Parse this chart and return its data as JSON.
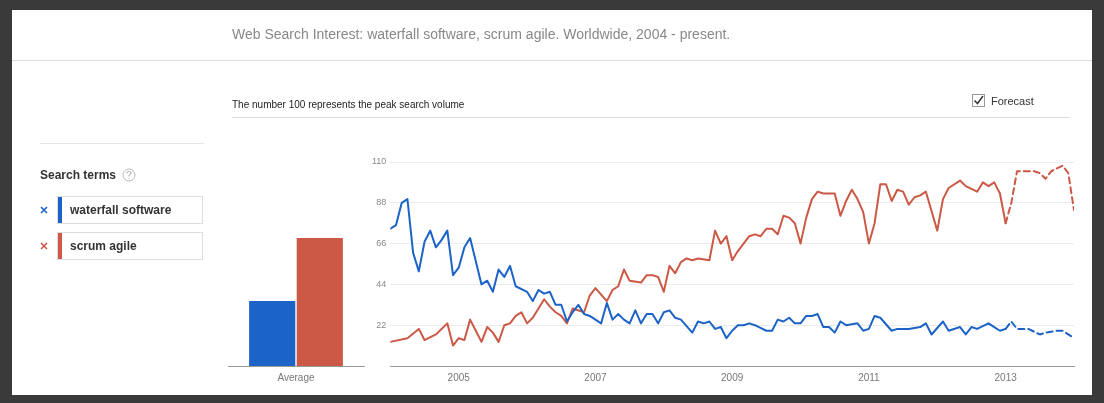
{
  "chart_data": [
    {
      "type": "bar",
      "categories": [
        "Average"
      ],
      "series": [
        {
          "color": "#1c63c7",
          "values": [
            35
          ]
        },
        {
          "color": "#cc5846",
          "values": [
            69
          ]
        }
      ],
      "ylim": [
        0,
        110
      ],
      "tick_labels": "x"
    },
    {
      "type": "line",
      "title": "Web Search Interest: waterfall software, scrum agile. Worldwide, 2004 - present.",
      "subtitle": "The number 100 represents the peak search volume",
      "legend_title": "Search terms",
      "annotations": [
        "Forecast"
      ],
      "series": [
        {
          "name": "waterfall software",
          "color": "#1c63c7",
          "x": [
            "2004-01",
            "2004-02",
            "2004-03",
            "2004-04",
            "2004-05",
            "2004-06",
            "2004-07",
            "2004-08",
            "2004-09",
            "2004-10",
            "2004-11",
            "2004-12",
            "2005-01",
            "2005-02",
            "2005-03",
            "2005-05",
            "2005-06",
            "2005-07",
            "2005-08",
            "2005-09",
            "2005-10",
            "2005-11",
            "2006-01",
            "2006-02",
            "2006-03",
            "2006-04",
            "2006-05",
            "2006-06",
            "2006-07",
            "2006-08",
            "2006-09",
            "2006-10",
            "2006-11",
            "2006-12",
            "2007-02",
            "2007-03",
            "2007-04",
            "2007-05",
            "2007-06",
            "2007-07",
            "2007-08",
            "2007-09",
            "2007-10",
            "2007-11",
            "2007-12",
            "2008-01",
            "2008-02",
            "2008-03",
            "2008-04",
            "2008-06",
            "2008-07",
            "2008-08",
            "2008-09",
            "2008-10",
            "2008-11",
            "2008-12",
            "2009-01",
            "2009-02",
            "2009-03",
            "2009-04",
            "2009-05",
            "2009-07",
            "2009-08",
            "2009-09",
            "2009-10",
            "2009-11",
            "2009-12",
            "2010-01",
            "2010-02",
            "2010-03",
            "2010-04",
            "2010-05",
            "2010-06",
            "2010-07",
            "2010-08",
            "2010-09",
            "2010-11",
            "2010-12",
            "2011-01",
            "2011-02",
            "2011-03",
            "2011-05",
            "2011-06",
            "2011-08",
            "2011-10",
            "2011-11",
            "2011-12",
            "2012-02",
            "2012-03",
            "2012-05",
            "2012-06",
            "2012-07",
            "2012-08",
            "2012-10",
            "2012-11",
            "2012-12",
            "2013-01"
          ],
          "values": [
            74,
            76,
            88,
            90,
            61,
            51,
            67,
            73,
            64,
            68,
            73,
            49,
            53,
            64,
            69,
            44,
            46,
            40,
            52,
            48,
            54,
            43,
            40,
            35,
            41,
            39,
            40,
            33,
            33,
            24,
            29,
            33,
            28,
            27,
            23,
            34,
            25,
            28,
            25,
            23,
            30,
            23,
            28,
            28,
            23,
            29,
            30,
            26,
            25,
            18,
            24,
            23,
            24,
            20,
            21,
            15,
            19,
            22,
            22,
            23,
            22,
            19,
            19,
            25,
            24,
            26,
            23,
            23,
            27,
            27,
            28,
            21,
            21,
            18,
            24,
            22,
            23,
            19,
            20,
            27,
            26,
            19,
            20,
            20,
            21,
            23,
            17,
            24,
            19,
            21,
            17,
            21,
            20,
            23,
            21,
            19,
            20
          ]
        },
        {
          "name": "scrum agile",
          "color": "#cc5846",
          "x": [
            "2004-01",
            "2004-04",
            "2004-06",
            "2004-07",
            "2004-09",
            "2004-11",
            "2004-12",
            "2005-01",
            "2005-02",
            "2005-03",
            "2005-04",
            "2005-05",
            "2005-06",
            "2005-07",
            "2005-08",
            "2005-09",
            "2005-10",
            "2005-11",
            "2005-12",
            "2006-01",
            "2006-02",
            "2006-04",
            "2006-05",
            "2006-06",
            "2006-07",
            "2006-08",
            "2006-09",
            "2006-11",
            "2006-12",
            "2007-01",
            "2007-03",
            "2007-04",
            "2007-05",
            "2007-06",
            "2007-07",
            "2007-09",
            "2007-10",
            "2007-11",
            "2007-12",
            "2008-01",
            "2008-02",
            "2008-03",
            "2008-04",
            "2008-05",
            "2008-06",
            "2008-07",
            "2008-09",
            "2008-10",
            "2008-11",
            "2008-12",
            "2009-01",
            "2009-02",
            "2009-04",
            "2009-05",
            "2009-06",
            "2009-07",
            "2009-08",
            "2009-09",
            "2009-10",
            "2009-11",
            "2009-12",
            "2010-01",
            "2010-02",
            "2010-03",
            "2010-04",
            "2010-05",
            "2010-07",
            "2010-08",
            "2010-09",
            "2010-10",
            "2010-11",
            "2010-12",
            "2011-01",
            "2011-02",
            "2011-03",
            "2011-04",
            "2011-05",
            "2011-06",
            "2011-07",
            "2011-08",
            "2011-09",
            "2011-10",
            "2011-11",
            "2012-01",
            "2012-02",
            "2012-03",
            "2012-05",
            "2012-06",
            "2012-08",
            "2012-09",
            "2012-10",
            "2012-11",
            "2012-12",
            "2013-01"
          ],
          "values": [
            13,
            15,
            20,
            14,
            17,
            23,
            11,
            15,
            14,
            25,
            19,
            13,
            21,
            18,
            13,
            22,
            23,
            27,
            29,
            23,
            26,
            36,
            32,
            29,
            27,
            23,
            31,
            29,
            38,
            42,
            35,
            41,
            43,
            52,
            46,
            45,
            49,
            49,
            48,
            40,
            54,
            50,
            56,
            58,
            57,
            58,
            57,
            73,
            66,
            70,
            57,
            62,
            70,
            71,
            70,
            74,
            74,
            71,
            81,
            80,
            77,
            66,
            80,
            90,
            94,
            93,
            93,
            81,
            89,
            95,
            90,
            83,
            66,
            77,
            98,
            98,
            89,
            95,
            94,
            87,
            91,
            92,
            94,
            73,
            90,
            96,
            100,
            97,
            94,
            99,
            97,
            99,
            93,
            77
          ]
        },
        {
          "color": "#1c63c7",
          "line_style": "dashed",
          "x": [
            "2013-01",
            "2013-02",
            "2013-03",
            "2013-05",
            "2013-07",
            "2013-08",
            "2013-10",
            "2013-11",
            "2014-01"
          ],
          "values": [
            20,
            24,
            20,
            20,
            17,
            18,
            19,
            19,
            15
          ]
        },
        {
          "color": "#cc5846",
          "line_style": "dashed",
          "x": [
            "2013-01",
            "2013-02",
            "2013-03",
            "2013-04",
            "2013-06",
            "2013-07",
            "2013-08",
            "2013-09",
            "2013-11",
            "2013-12",
            "2014-01"
          ],
          "values": [
            77,
            88,
            105,
            105,
            105,
            104,
            101,
            105,
            108,
            104,
            84
          ]
        }
      ],
      "xlim": [
        "2004-01",
        "2014-01"
      ],
      "xticks": [
        {
          "value": "2005-01",
          "label": "2005"
        },
        {
          "value": "2007-01",
          "label": "2007"
        },
        {
          "value": "2009-01",
          "label": "2009"
        },
        {
          "value": "2011-01",
          "label": "2011"
        },
        {
          "value": "2013-01",
          "label": "2013"
        }
      ],
      "ylim": [
        0,
        110
      ],
      "yticks": [
        22,
        44,
        66,
        88,
        110
      ],
      "grid": "y",
      "legend": "left",
      "marker": "none",
      "line_style": "solid"
    }
  ]
}
